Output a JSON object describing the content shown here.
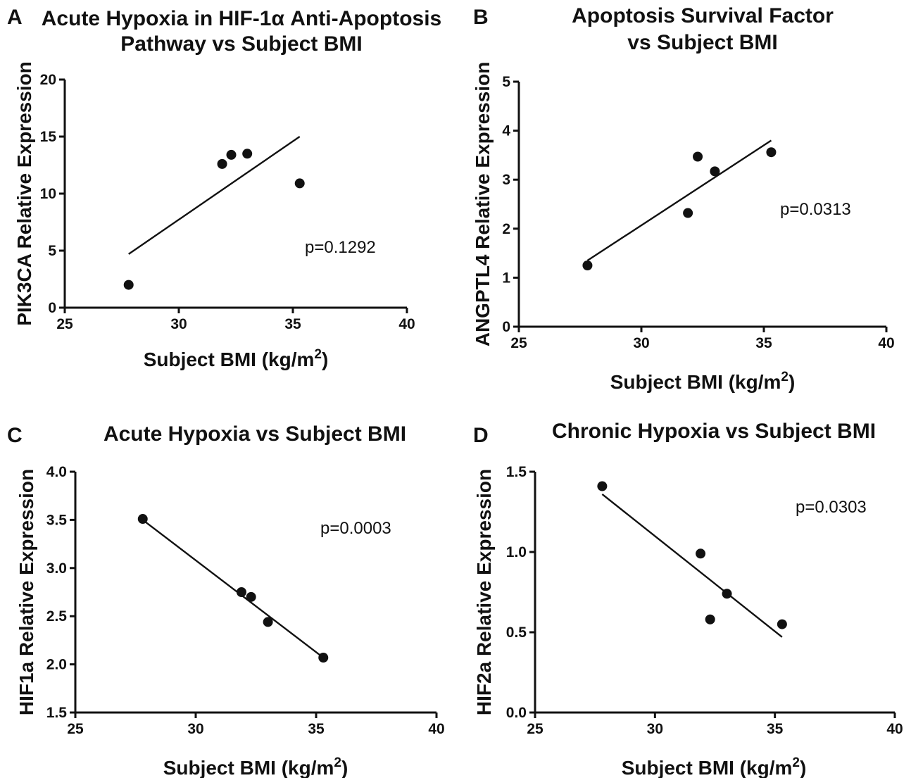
{
  "chart_data": [
    {
      "panel": "A",
      "type": "scatter",
      "title_lines": [
        "Acute Hypoxia in HIF-1α Anti-Apoptosis",
        "Pathway vs Subject BMI"
      ],
      "xlabel": "Subject BMI (kg/m",
      "xlabel_sup": "2",
      "xlabel_tail": ")",
      "ylabel": "PIK3CA Relative Expression",
      "xlim": [
        25,
        40
      ],
      "ylim": [
        0,
        20
      ],
      "xticks": [
        25,
        30,
        35,
        40
      ],
      "yticks": [
        0,
        5,
        10,
        15,
        20
      ],
      "x": [
        27.8,
        31.9,
        32.3,
        33.0,
        35.3
      ],
      "y": [
        2.0,
        12.6,
        13.4,
        13.5,
        10.9
      ],
      "fit": {
        "x": [
          27.8,
          35.3
        ],
        "y": [
          4.7,
          15.0
        ]
      },
      "annotation": "p=0.1292"
    },
    {
      "panel": "B",
      "type": "scatter",
      "title_lines": [
        "Apoptosis Survival Factor",
        "vs Subject BMI"
      ],
      "xlabel": "Subject BMI (kg/m",
      "xlabel_sup": "2",
      "xlabel_tail": ")",
      "ylabel": "ANGPTL4 Relative Expression",
      "xlim": [
        25,
        40
      ],
      "ylim": [
        0,
        5
      ],
      "xticks": [
        25,
        30,
        35,
        40
      ],
      "yticks": [
        0,
        1,
        2,
        3,
        4,
        5
      ],
      "x": [
        27.8,
        31.9,
        32.3,
        33.0,
        35.3
      ],
      "y": [
        1.25,
        2.32,
        3.47,
        3.17,
        3.56
      ],
      "fit": {
        "x": [
          27.8,
          35.3
        ],
        "y": [
          1.35,
          3.8
        ]
      },
      "annotation": "p=0.0313"
    },
    {
      "panel": "C",
      "type": "scatter",
      "title_lines": [
        "Acute Hypoxia vs Subject BMI"
      ],
      "xlabel": "Subject BMI (kg/m",
      "xlabel_sup": "2",
      "xlabel_tail": ")",
      "ylabel": "HIF1a Relative Expression",
      "xlim": [
        25,
        40
      ],
      "ylim": [
        1.5,
        4.0
      ],
      "xticks": [
        25,
        30,
        35,
        40
      ],
      "yticks": [
        "1.5",
        "2.0",
        "2.5",
        "3.0",
        "3.5",
        "4.0"
      ],
      "x": [
        27.8,
        31.9,
        32.3,
        33.0,
        35.3
      ],
      "y": [
        3.51,
        2.75,
        2.7,
        2.44,
        2.07
      ],
      "fit": {
        "x": [
          27.8,
          35.3
        ],
        "y": [
          3.5,
          2.07
        ]
      },
      "annotation": "p=0.0003"
    },
    {
      "panel": "D",
      "type": "scatter",
      "title_lines": [
        "Chronic Hypoxia vs Subject BMI"
      ],
      "xlabel": "Subject BMI (kg/m",
      "xlabel_sup": "2",
      "xlabel_tail": ")",
      "ylabel": "HIF2a Relative Expression",
      "xlim": [
        25,
        40
      ],
      "ylim": [
        0.0,
        1.5
      ],
      "xticks": [
        25,
        30,
        35,
        40
      ],
      "yticks": [
        "0.0",
        "0.5",
        "1.0",
        "1.5"
      ],
      "x": [
        27.8,
        31.9,
        32.3,
        33.0,
        35.3
      ],
      "y": [
        1.41,
        0.99,
        0.58,
        0.74,
        0.55
      ],
      "fit": {
        "x": [
          27.8,
          35.3
        ],
        "y": [
          1.36,
          0.47
        ]
      },
      "annotation": "p=0.0303"
    }
  ]
}
